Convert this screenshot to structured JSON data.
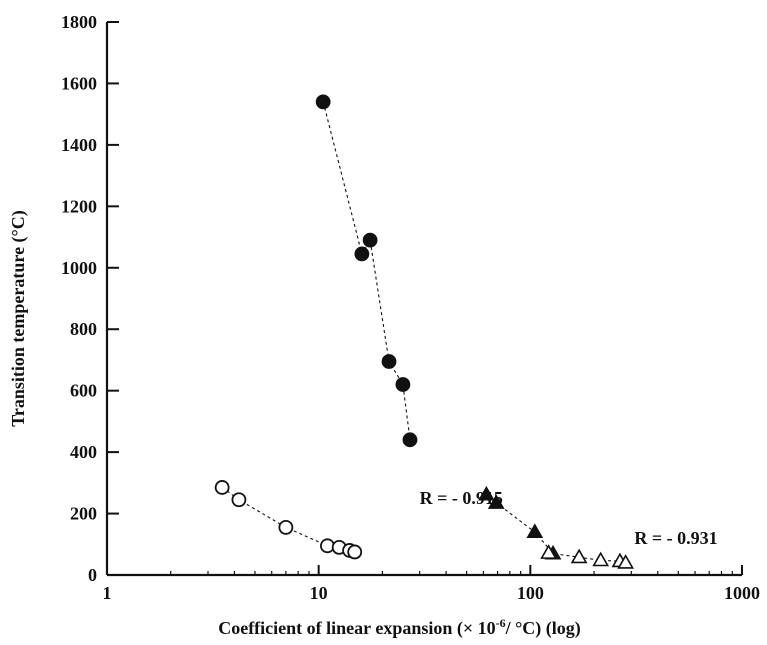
{
  "chart_data": {
    "type": "scatter",
    "title": "",
    "xlabel_main": "Coefficient of linear expansion (× 10",
    "xlabel_sup": "-6",
    "xlabel_tail": "/ °C) (log)",
    "ylabel": "Transition temperature (°C)",
    "xscale": "log",
    "xlim": [
      1,
      1000
    ],
    "ylim": [
      0,
      1800
    ],
    "grid": false,
    "x_ticks": [
      1,
      10,
      100,
      1000
    ],
    "x_tick_labels": [
      "1",
      "10",
      "100",
      "1000"
    ],
    "y_ticks": [
      0,
      200,
      400,
      600,
      800,
      1000,
      1200,
      1400,
      1600,
      1800
    ],
    "y_tick_labels": [
      "0",
      "200",
      "400",
      "600",
      "800",
      "1000",
      "1200",
      "1400",
      "1600",
      "1800"
    ],
    "series": [
      {
        "marker": "filled-circle",
        "fit_line": "dashed",
        "points": [
          [
            10.5,
            1540
          ],
          [
            16,
            1045
          ],
          [
            17.5,
            1090
          ],
          [
            21.5,
            695
          ],
          [
            25,
            620
          ],
          [
            27,
            440
          ]
        ]
      },
      {
        "marker": "open-circle",
        "fit_line": "dashed",
        "points": [
          [
            3.5,
            285
          ],
          [
            4.2,
            245
          ],
          [
            7,
            155
          ],
          [
            11,
            95
          ],
          [
            12.5,
            90
          ],
          [
            14,
            80
          ],
          [
            14.8,
            75
          ]
        ]
      },
      {
        "marker": "filled-triangle",
        "fit_line": "dashed",
        "points": [
          [
            62,
            262
          ],
          [
            69,
            235
          ],
          [
            105,
            140
          ],
          [
            128,
            70
          ]
        ]
      },
      {
        "marker": "open-triangle",
        "fit_line": "dashed",
        "points": [
          [
            122,
            72
          ],
          [
            170,
            58
          ],
          [
            215,
            48
          ],
          [
            265,
            45
          ],
          [
            282,
            40
          ]
        ]
      }
    ],
    "annotations": [
      {
        "text": "R = - 0.915",
        "x": 30,
        "y": 250
      },
      {
        "text": "R = - 0.931",
        "x": 310,
        "y": 120
      }
    ]
  }
}
